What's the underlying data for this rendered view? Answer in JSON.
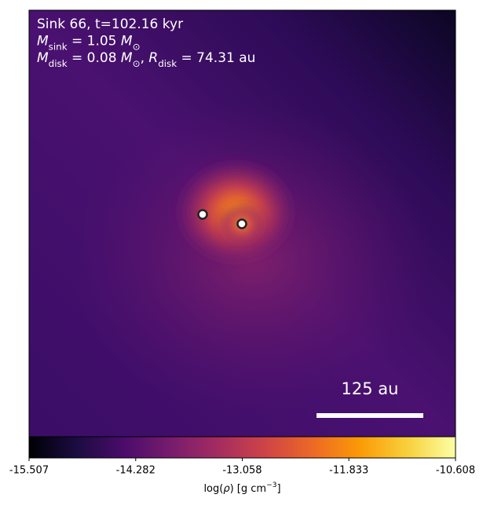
{
  "chart_data": {
    "type": "heatmap",
    "annotations": [
      [
        {
          "text": "Sink 66, t=102.16 kyr",
          "style": "normal"
        }
      ],
      [
        {
          "text": "M",
          "style": "italic"
        },
        {
          "text": "sink",
          "style": "sub"
        },
        {
          "text": " = 1.05 ",
          "style": "normal"
        },
        {
          "text": "M",
          "style": "italic"
        },
        {
          "text": "⊙",
          "style": "sub"
        }
      ],
      [
        {
          "text": "M",
          "style": "italic"
        },
        {
          "text": "disk",
          "style": "sub"
        },
        {
          "text": " = 0.08 ",
          "style": "normal"
        },
        {
          "text": "M",
          "style": "italic"
        },
        {
          "text": "⊙",
          "style": "sub"
        },
        {
          "text": ", ",
          "style": "normal"
        },
        {
          "text": "R",
          "style": "italic"
        },
        {
          "text": "disk",
          "style": "sub"
        },
        {
          "text": " = 74.31 au",
          "style": "normal"
        }
      ]
    ],
    "scale_bar_label": "125 au",
    "colormap": "inferno",
    "clim": [
      -15.507,
      -10.608
    ],
    "cticks": [
      -15.507,
      -14.282,
      -13.058,
      -11.833,
      -10.608
    ],
    "colorbar_label": [
      {
        "text": "log(",
        "style": "normal"
      },
      {
        "text": "ρ",
        "style": "italic"
      },
      {
        "text": ") [g cm",
        "style": "normal"
      },
      {
        "text": "−3",
        "style": "sup"
      },
      {
        "text": "]",
        "style": "normal"
      }
    ]
  }
}
